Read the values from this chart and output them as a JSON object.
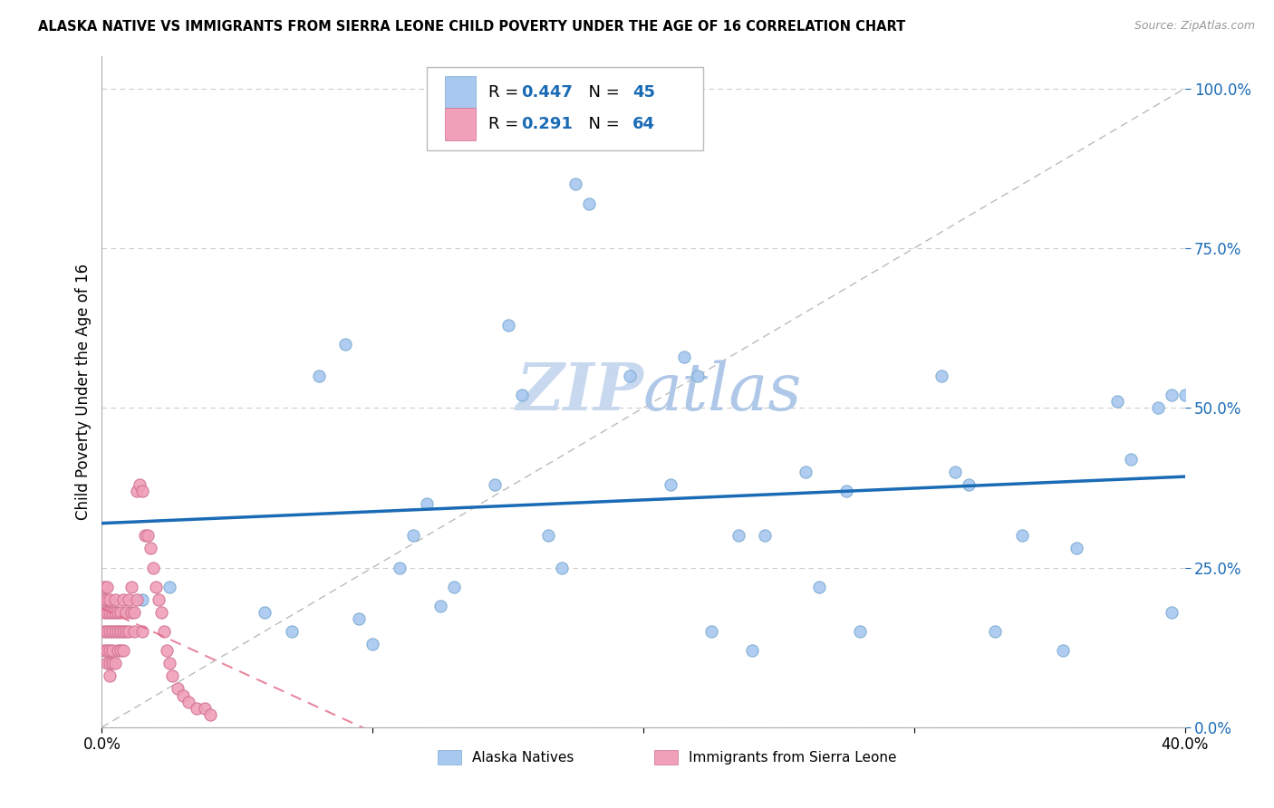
{
  "title": "ALASKA NATIVE VS IMMIGRANTS FROM SIERRA LEONE CHILD POVERTY UNDER THE AGE OF 16 CORRELATION CHART",
  "source": "Source: ZipAtlas.com",
  "ylabel": "Child Poverty Under the Age of 16",
  "xlim": [
    0.0,
    0.4
  ],
  "ylim": [
    0.0,
    1.05
  ],
  "yticks": [
    0.0,
    0.25,
    0.5,
    0.75,
    1.0
  ],
  "ytick_labels": [
    "0.0%",
    "25.0%",
    "50.0%",
    "75.0%",
    "100.0%"
  ],
  "xticks": [
    0.0,
    0.1,
    0.2,
    0.3,
    0.4
  ],
  "xtick_labels": [
    "0.0%",
    "",
    "",
    "",
    "40.0%"
  ],
  "alaska_native_R": 0.447,
  "alaska_native_N": 45,
  "sierra_leone_R": 0.291,
  "sierra_leone_N": 64,
  "alaska_color": "#a8c8f0",
  "alaska_edge": "#7aaad0",
  "sierra_color": "#f0a0b8",
  "sierra_edge": "#d07090",
  "trendline_blue": "#1a6bb5",
  "trendline_pink": "#e06080",
  "grid_color": "#cccccc",
  "watermark_color": "#c8d8ee",
  "alaska_x": [
    0.015,
    0.025,
    0.06,
    0.07,
    0.08,
    0.09,
    0.095,
    0.1,
    0.11,
    0.115,
    0.12,
    0.125,
    0.13,
    0.145,
    0.15,
    0.155,
    0.165,
    0.17,
    0.175,
    0.18,
    0.195,
    0.21,
    0.215,
    0.22,
    0.225,
    0.235,
    0.24,
    0.245,
    0.26,
    0.265,
    0.275,
    0.28,
    0.31,
    0.315,
    0.32,
    0.33,
    0.34,
    0.355,
    0.36,
    0.375,
    0.38,
    0.39,
    0.395,
    0.395,
    0.4
  ],
  "alaska_y": [
    0.2,
    0.22,
    0.18,
    0.15,
    0.55,
    0.6,
    0.17,
    0.13,
    0.25,
    0.3,
    0.35,
    0.19,
    0.22,
    0.38,
    0.63,
    0.52,
    0.3,
    0.25,
    0.85,
    0.82,
    0.55,
    0.38,
    0.58,
    0.55,
    0.15,
    0.3,
    0.12,
    0.3,
    0.4,
    0.22,
    0.37,
    0.15,
    0.55,
    0.4,
    0.38,
    0.15,
    0.3,
    0.12,
    0.28,
    0.51,
    0.42,
    0.5,
    0.52,
    0.18,
    0.52
  ],
  "sierra_x": [
    0.001,
    0.001,
    0.001,
    0.001,
    0.001,
    0.002,
    0.002,
    0.002,
    0.002,
    0.002,
    0.002,
    0.003,
    0.003,
    0.003,
    0.003,
    0.003,
    0.003,
    0.004,
    0.004,
    0.004,
    0.004,
    0.005,
    0.005,
    0.005,
    0.005,
    0.006,
    0.006,
    0.006,
    0.007,
    0.007,
    0.007,
    0.008,
    0.008,
    0.008,
    0.009,
    0.009,
    0.01,
    0.01,
    0.011,
    0.011,
    0.012,
    0.012,
    0.013,
    0.013,
    0.014,
    0.015,
    0.015,
    0.016,
    0.017,
    0.018,
    0.019,
    0.02,
    0.021,
    0.022,
    0.023,
    0.024,
    0.025,
    0.026,
    0.028,
    0.03,
    0.032,
    0.035,
    0.038,
    0.04
  ],
  "sierra_y": [
    0.2,
    0.22,
    0.18,
    0.15,
    0.12,
    0.2,
    0.22,
    0.18,
    0.15,
    0.12,
    0.1,
    0.2,
    0.18,
    0.15,
    0.12,
    0.1,
    0.08,
    0.18,
    0.15,
    0.12,
    0.1,
    0.2,
    0.18,
    0.15,
    0.1,
    0.18,
    0.15,
    0.12,
    0.18,
    0.15,
    0.12,
    0.2,
    0.15,
    0.12,
    0.18,
    0.15,
    0.2,
    0.15,
    0.22,
    0.18,
    0.18,
    0.15,
    0.2,
    0.37,
    0.38,
    0.37,
    0.15,
    0.3,
    0.3,
    0.28,
    0.25,
    0.22,
    0.2,
    0.18,
    0.15,
    0.12,
    0.1,
    0.08,
    0.06,
    0.05,
    0.04,
    0.03,
    0.03,
    0.02
  ]
}
